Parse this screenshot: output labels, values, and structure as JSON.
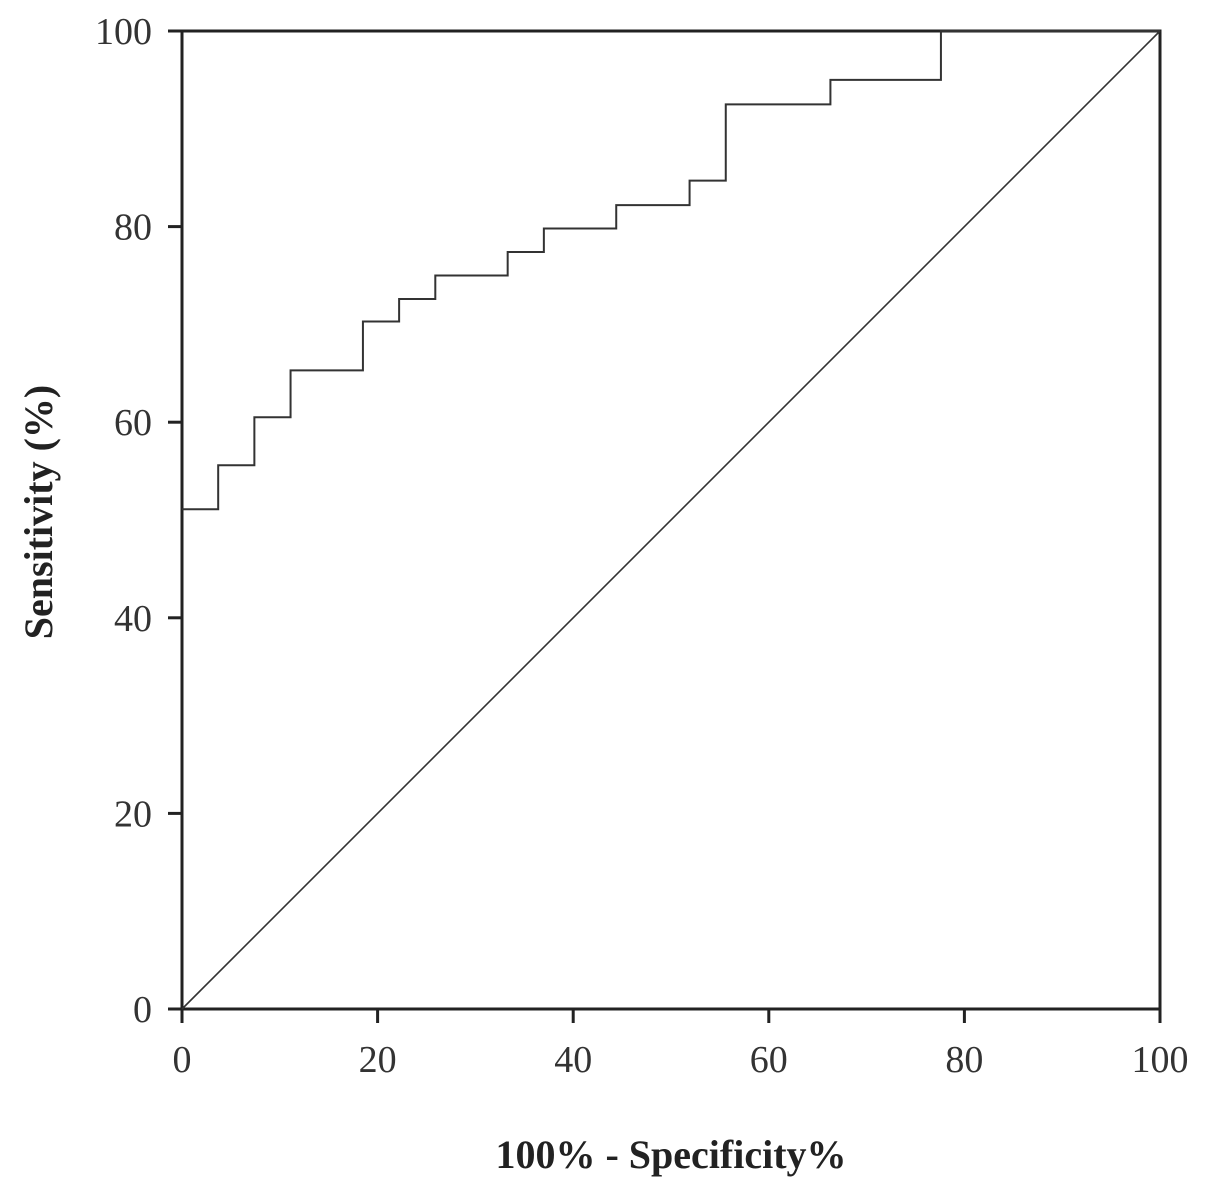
{
  "chart_data": {
    "type": "line",
    "title": "",
    "xlabel": "100% - Specificity%",
    "ylabel": "Sensitivity (%)",
    "xlim": [
      0,
      100
    ],
    "ylim": [
      0,
      100
    ],
    "x_ticks": [
      "0",
      "20",
      "40",
      "60",
      "80",
      "100"
    ],
    "y_ticks": [
      "0",
      "20",
      "40",
      "60",
      "80",
      "100"
    ],
    "grid": false,
    "series": [
      {
        "style": "step",
        "points": [
          [
            0,
            51.1
          ],
          [
            3.7,
            51.1
          ],
          [
            3.7,
            55.6
          ],
          [
            7.4,
            55.6
          ],
          [
            7.4,
            60.5
          ],
          [
            11.1,
            60.5
          ],
          [
            11.1,
            65.3
          ],
          [
            18.5,
            65.3
          ],
          [
            18.5,
            70.3
          ],
          [
            22.2,
            70.3
          ],
          [
            22.2,
            72.6
          ],
          [
            25.9,
            72.6
          ],
          [
            25.9,
            75.0
          ],
          [
            33.3,
            75.0
          ],
          [
            33.3,
            77.4
          ],
          [
            37.0,
            77.4
          ],
          [
            37.0,
            79.8
          ],
          [
            44.4,
            79.8
          ],
          [
            44.4,
            82.2
          ],
          [
            51.9,
            82.2
          ],
          [
            51.9,
            84.7
          ],
          [
            55.6,
            84.7
          ],
          [
            55.6,
            92.5
          ],
          [
            66.3,
            92.5
          ],
          [
            66.3,
            95.0
          ],
          [
            77.6,
            95.0
          ],
          [
            77.6,
            100
          ],
          [
            100,
            100
          ]
        ]
      },
      {
        "style": "reference",
        "points": [
          [
            0,
            0
          ],
          [
            100,
            100
          ]
        ]
      }
    ]
  }
}
